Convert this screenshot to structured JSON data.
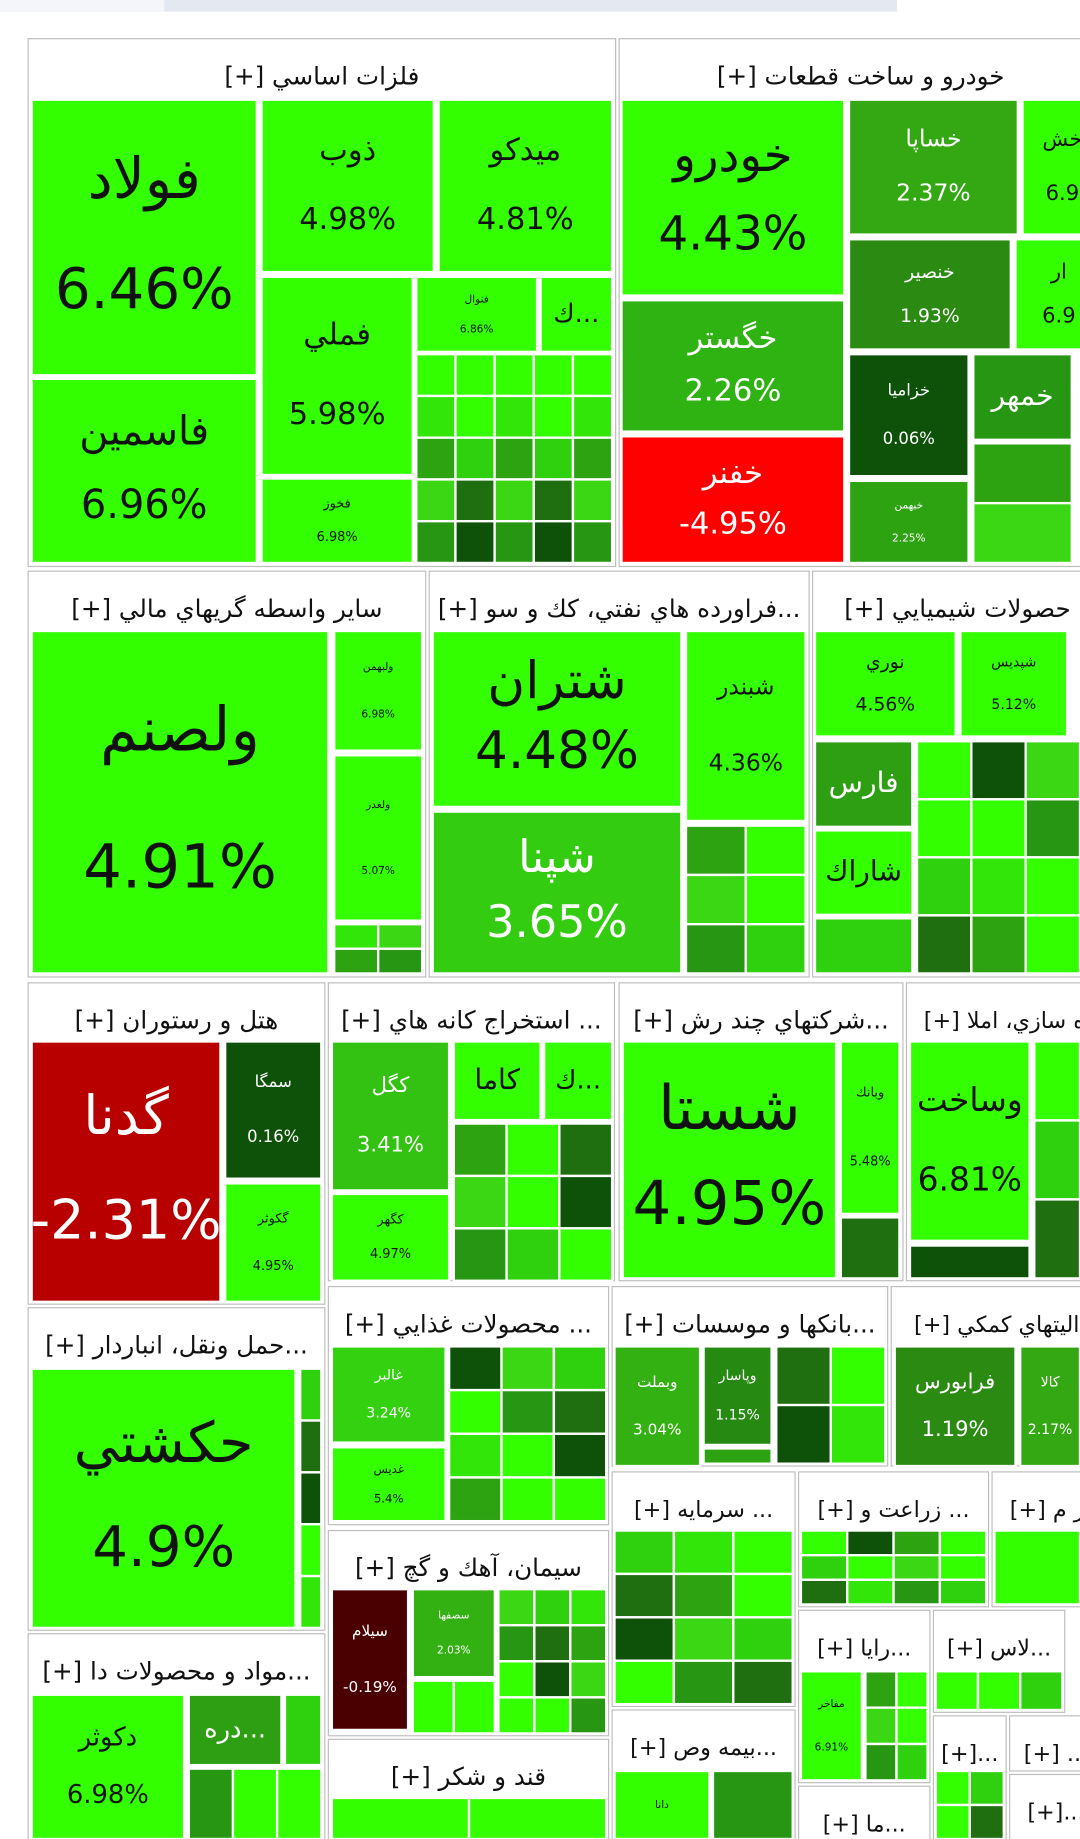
{
  "sectors": [
    {
      "title": "فلزات اساسي [+]",
      "tiles": [
        {
          "name": "فولاد",
          "change": "6.46%",
          "color": "#33ff00"
        },
        {
          "name": "فاسمين",
          "change": "6.96%",
          "color": "#33ff00"
        },
        {
          "name": "ذوب",
          "change": "4.98%",
          "color": "#33ff00"
        },
        {
          "name": "ميدكو",
          "change": "4.81%",
          "color": "#33ff00"
        },
        {
          "name": "فملي",
          "change": "5.98%",
          "color": "#33ff00"
        },
        {
          "name": "فخوز",
          "change": "6.98%",
          "color": "#33ff00"
        },
        {
          "name": "فنوال",
          "change": "6.86%",
          "color": "#33ff00"
        },
        {
          "name": "...ك",
          "color": "#33ff00"
        }
      ]
    },
    {
      "title": "خودرو و ساخت قطعات [+]",
      "tiles": [
        {
          "name": "خودرو",
          "change": "4.43%",
          "color": "#33ff00"
        },
        {
          "name": "خگستر",
          "change": "2.26%",
          "color": "#2fb312"
        },
        {
          "name": "خفنر",
          "change": "-4.95%",
          "color": "#ff0000"
        },
        {
          "name": "خساپا",
          "change": "2.37%",
          "color": "#33a812"
        },
        {
          "name": "خنصير",
          "change": "1.93%",
          "color": "#2a8a12"
        },
        {
          "name": "خزاميا",
          "change": "0.06%",
          "color": "#0d5208"
        },
        {
          "name": "خمهر",
          "color": "#279612"
        },
        {
          "name": "خبهمن",
          "change": "2.25%",
          "color": "#2ea312"
        },
        {
          "name": "خش",
          "change": "6.9",
          "color": "#33ff00"
        },
        {
          "name": "ار",
          "change": "6.9",
          "color": "#33ff00"
        }
      ]
    },
    {
      "title": "ساير واسطه گريهاي مالي [+]",
      "tiles": [
        {
          "name": "ولصنم",
          "change": "4.91%",
          "color": "#33ff00"
        },
        {
          "name": "ولبهمن",
          "change": "6.98%",
          "color": "#33ff00"
        },
        {
          "name": "ولغدر",
          "change": "5.07%",
          "color": "#33ff00"
        }
      ]
    },
    {
      "title": "...فراورده هاي نفتي، كك و سو [+]",
      "tiles": [
        {
          "name": "شتران",
          "change": "4.48%",
          "color": "#33ff00"
        },
        {
          "name": "شپنا",
          "change": "3.65%",
          "color": "#33cc11"
        },
        {
          "name": "شبندر",
          "change": "4.36%",
          "color": "#33ff00"
        }
      ]
    },
    {
      "title": "حصولات شيميايي [+]",
      "tiles": [
        {
          "name": "نوري",
          "change": "4.56%",
          "color": "#33ff00"
        },
        {
          "name": "شپديس",
          "change": "5.12%",
          "color": "#33ff00"
        },
        {
          "name": "فارس",
          "color": "#2e9e12"
        },
        {
          "name": "شاراك",
          "color": "#33ff00"
        }
      ]
    },
    {
      "title": "هتل و رستوران [+]",
      "tiles": [
        {
          "name": "گدنا",
          "change": "-2.31%",
          "color": "#b80000"
        },
        {
          "name": "سمگا",
          "change": "0.16%",
          "color": "#0d5208"
        },
        {
          "name": "گكوثر",
          "change": "4.95%",
          "color": "#33ff00"
        }
      ]
    },
    {
      "title": "... استخراج كانه هاي [+]",
      "tiles": [
        {
          "name": "كگل",
          "change": "3.41%",
          "color": "#33c212"
        },
        {
          "name": "كاما",
          "color": "#33ff00"
        },
        {
          "name": "...ك",
          "color": "#33ff00"
        },
        {
          "name": "كگهر",
          "change": "4.97%",
          "color": "#33ff00"
        }
      ]
    },
    {
      "title": "...شركتهاي چند رش [+]",
      "tiles": [
        {
          "name": "شستا",
          "change": "4.95%",
          "color": "#33ff00"
        },
        {
          "name": "وبانك",
          "change": "5.48%",
          "color": "#33ff00"
        }
      ]
    },
    {
      "title": "ه سازي، املا [+]",
      "tiles": [
        {
          "name": "وساخت",
          "change": "6.81%",
          "color": "#33ff00"
        }
      ]
    },
    {
      "title": "...حمل ونقل، انباردار [+]",
      "tiles": [
        {
          "name": "حكشتي",
          "change": "4.9%",
          "color": "#33ff00"
        }
      ]
    },
    {
      "title": "... محصولات غذايي [+]",
      "tiles": [
        {
          "name": "غالبر",
          "change": "3.24%",
          "color": "#33d10f"
        },
        {
          "name": "غديس",
          "change": "5.4%",
          "color": "#33ff00"
        }
      ]
    },
    {
      "title": "...بانكها و موسسات [+]",
      "tiles": [
        {
          "name": "وبملت",
          "change": "3.04%",
          "color": "#33b012"
        },
        {
          "name": "وپاسار",
          "change": "1.15%",
          "color": "#268a12"
        }
      ]
    },
    {
      "title": "اليتهاي كمكي [+]",
      "tiles": [
        {
          "name": "فرابورس",
          "change": "1.19%",
          "color": "#2a8a12"
        },
        {
          "name": "كالا",
          "change": "2.17%",
          "color": "#33a812"
        }
      ]
    },
    {
      "title": "... سرمايه [+]",
      "tiles": []
    },
    {
      "title": "... زراعت و [+]",
      "tiles": []
    },
    {
      "title": "ر م [+]",
      "tiles": []
    },
    {
      "title": "سيمان، آهك و گچ [+]",
      "tiles": [
        {
          "name": "سيلام",
          "change": "-0.19%",
          "color": "#4a0000"
        },
        {
          "name": "سصفها",
          "change": "2.03%",
          "color": "#33b012"
        }
      ]
    },
    {
      "title": "...مواد و محصولات دا [+]",
      "tiles": [
        {
          "name": "دكوثر",
          "change": "6.98%",
          "color": "#33ff00"
        },
        {
          "name": "...دره",
          "color": "#2e9e12"
        }
      ]
    },
    {
      "title": "قند و شكر [+]",
      "tiles": []
    },
    {
      "title": "...بيمه وص [+]",
      "tiles": [
        {
          "name": "دانا",
          "color": "#33ff00"
        }
      ]
    },
    {
      "title": "...رايا [+]",
      "tiles": [
        {
          "name": "مفاخر",
          "change": "6.91%",
          "color": "#33ff00"
        }
      ]
    },
    {
      "title": "...لاس [+]",
      "tiles": []
    },
    {
      "title": "...[+]",
      "tiles": []
    },
    {
      "title": "... [+]",
      "tiles": []
    },
    {
      "title": "...[+]",
      "tiles": []
    },
    {
      "title": "...ما [+]",
      "tiles": []
    }
  ]
}
